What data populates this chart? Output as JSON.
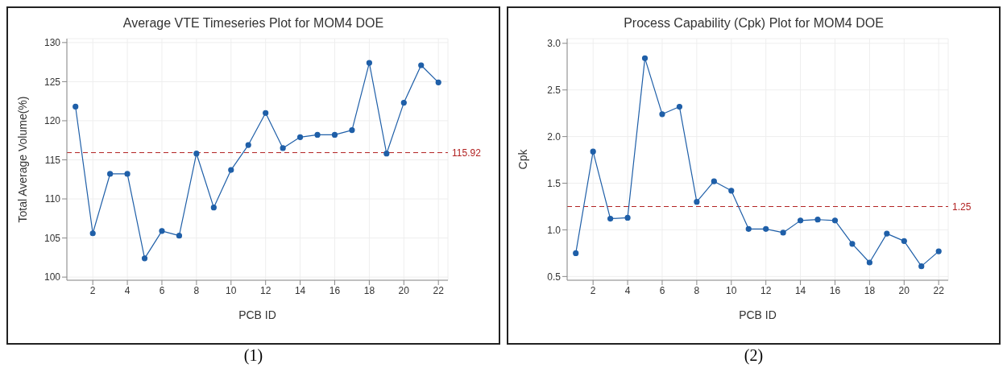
{
  "chart_data": [
    {
      "type": "line",
      "title": "Average VTE Timeseries Plot for MOM4 DOE",
      "xlabel": "PCB ID",
      "ylabel": "Total Average Volume(%)",
      "x": [
        1,
        2,
        3,
        4,
        5,
        6,
        7,
        8,
        9,
        10,
        11,
        12,
        13,
        14,
        15,
        16,
        17,
        18,
        19,
        20,
        21,
        22
      ],
      "series": [
        {
          "color": "#1f5fa8",
          "values": [
            121.8,
            105.6,
            113.2,
            113.2,
            102.4,
            105.9,
            105.3,
            115.8,
            108.9,
            113.7,
            116.9,
            121.0,
            116.5,
            117.9,
            118.2,
            118.2,
            118.8,
            127.4,
            115.8,
            122.3,
            127.1,
            124.9
          ]
        }
      ],
      "xlim": [
        0.5,
        22.55
      ],
      "xticks": [
        2,
        4,
        6,
        8,
        10,
        12,
        14,
        16,
        18,
        20,
        22
      ],
      "ylim": [
        99.6,
        130.5
      ],
      "yticks": [
        100,
        105,
        110,
        115,
        120,
        125,
        130
      ],
      "ref_lines": [
        {
          "axis": "y",
          "value": 115.92,
          "label": "115.92",
          "color": "#b22222",
          "line_style": "dashed"
        }
      ],
      "grid": true,
      "marker": "circle",
      "line_style": "solid",
      "annotations": [
        "(1)"
      ]
    },
    {
      "type": "line",
      "title": "Process Capability (Cpk) Plot for MOM4 DOE",
      "xlabel": "PCB ID",
      "ylabel": "Cpk",
      "x": [
        1,
        2,
        3,
        4,
        5,
        6,
        7,
        8,
        9,
        10,
        11,
        12,
        13,
        14,
        15,
        16,
        17,
        18,
        19,
        20,
        21,
        22
      ],
      "series": [
        {
          "color": "#1f5fa8",
          "values": [
            0.75,
            1.84,
            1.12,
            1.13,
            2.84,
            2.24,
            2.32,
            1.3,
            1.52,
            1.42,
            1.01,
            1.01,
            0.97,
            1.1,
            1.11,
            1.1,
            0.85,
            0.65,
            0.96,
            0.88,
            0.61,
            0.77
          ]
        }
      ],
      "xlim": [
        0.5,
        22.55
      ],
      "xticks": [
        2,
        4,
        6,
        8,
        10,
        12,
        14,
        16,
        18,
        20,
        22
      ],
      "ylim": [
        0.46,
        3.05
      ],
      "yticks": [
        {
          "value": 0.5,
          "label": "0.5"
        },
        {
          "value": 1,
          "label": "1.0"
        },
        {
          "value": 1.5,
          "label": "1.5"
        },
        {
          "value": 2,
          "label": "2.0"
        },
        {
          "value": 2.5,
          "label": "2.5"
        },
        {
          "value": 3,
          "label": "3.0"
        }
      ],
      "ref_lines": [
        {
          "axis": "y",
          "value": 1.25,
          "label": "1.25",
          "color": "#b22222",
          "line_style": "dashed"
        }
      ],
      "grid": true,
      "marker": "circle",
      "line_style": "solid",
      "annotations": [
        "(2)"
      ]
    }
  ]
}
